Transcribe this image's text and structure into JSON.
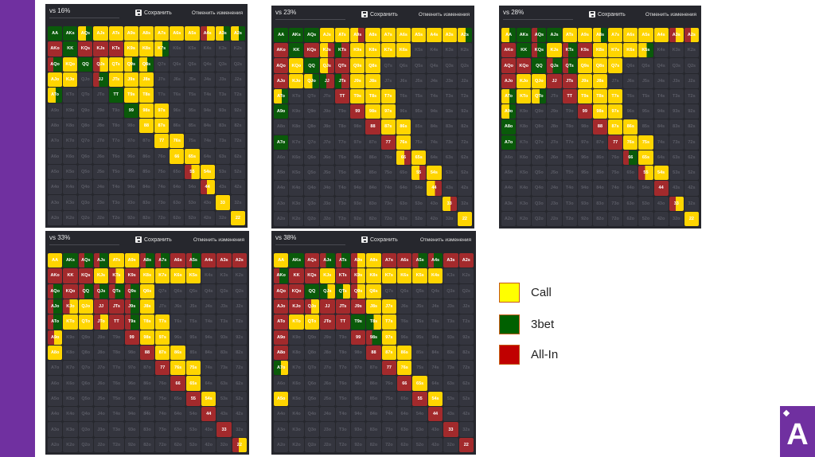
{
  "colors": {
    "call": "#ffd500",
    "threebet": "#0a5a0a",
    "allin": "#a32a2c",
    "empty": "#34353e",
    "accent": "#7030a0"
  },
  "panel_ui": {
    "save_label": "Сохранить",
    "undo_label": "Отменить изменения"
  },
  "hand_labels": [
    "AA AKs AQs AJs ATs A9s A8s A7s A6s A5s A4s A3s A2s",
    "AKo KK KQs KJs KTs K9s K8s K7s K6s K5s K4s K3s K2s",
    "AQo KQo QQ QJs QTs Q9s Q8s Q7s Q6s Q5s Q4s Q3s Q2s",
    "AJo KJo QJo JJ JTs J9s J8s J7s J6s J5s J4s J3s J2s",
    "ATo KTo QTo JTo TT T9s T8s T7s T6s T5s T4s T3s T2s",
    "A9o K9o Q9o J9o T9o 99 98s 97s 96s 95s 94s 93s 92s",
    "A8o K8o Q8o J8o T8o 98o 88 87s 86s 85s 84s 83s 82s",
    "A7o K7o Q7o J7o T7o 97o 87o 77 76s 75s 74s 73s 72s",
    "A6o K6o Q6o J6o T6o 96o 86o 76o 66 65s 64s 63s 62s",
    "A5o K5o Q5o J5o T5o 95o 85o 75o 65o 55 54s 53s 52s",
    "A4o K4o Q4o J4o T4o 94o 84o 74o 64o 54o 44 43s 42s",
    "A3o K3o Q3o J3o T3o 93o 83o 73o 63o 53o 43o 33 32s",
    "A2o K2o Q2o J2o T2o 92o 82o 72o 62o 52o 42o 32o 22"
  ],
  "cell_code_legend": {
    "y": "call",
    "g": "3bet",
    "r": "all-in",
    "Y": "call+3bet",
    "G": "3bet+call",
    "R": "all-in+call",
    "Z": "call+all-in",
    "X": "all-in+3bet",
    "W": "3bet+all-in",
    ".": "fold"
  },
  "panels": [
    {
      "title": "vs 16%",
      "cells": [
        "ggYyyyyyyyRYY",
        "rgrrryyY.....",
        "XygRyYY......",
        "yy.Xyyy......",
        "Y...gyy......",
        ".....gyy.....",
        "......yy.....",
        ".......yy....",
        "........yy...",
        ".........Ry..",
        "..........R..",
        "...........y.",
        "............y"
      ]
    },
    {
      "title": "vs 23%",
      "cells": [
        "gggyyZyyyyyyY",
        "rgrZWyyyy....",
        "rygZryy......",
        "ryYWWyy......",
        "Y...ryyy.....",
        "g....ryy.....",
        "......ryy....",
        "g......ry....",
        "........Zy...",
        ".........Zy..",
        "..........Z..",
        "...........Z.",
        "............y"
      ]
    },
    {
      "title": "vs 28%",
      "cells": [
        "YgXgyyYyyyyRR",
        "rgXyXryyyY...",
        "rrgXXyyy.....",
        "ryyrryy......",
        "YyY.ryyy.....",
        "Y....ryy.....",
        "g.....ryy....",
        "g......ryy...",
        "........Xy...",
        ".........Ry..",
        "..........r..",
        "...........R.",
        "............y"
      ]
    },
    {
      "title": "vs 33%",
      "cells": [
        "ygXXyyXXrXrrr",
        "rrryRryyyy...",
        "XrXXXXy......",
        "XRyrrXy......",
        "XyyRrXyy.....",
        "R....ryy.....",
        "y.....ryy....",
        ".......ryy...",
        "........ry...",
        ".........ry..",
        "..........r..",
        "...........r.",
        "............R"
      ]
    },
    {
      "title": "vs 38%",
      "cells": [
        "ygrXXRyrrXXrr",
        "XrryrRyyyyy..",
        "rrgGGRy......",
        "rrRrrryy.....",
        "ryyrrgGy.....",
        "r....rXy.....",
        "r.....ryy....",
        "G......ry....",
        "........ry...",
        "y........ry..",
        "..........r..",
        "...........r.",
        "............r"
      ]
    }
  ],
  "legend": [
    {
      "label": "Call",
      "color": "#ffff00"
    },
    {
      "label": "3bet",
      "color": "#006000"
    },
    {
      "label": "All-In",
      "color": "#c00000"
    }
  ],
  "logo": {
    "letter": "A"
  }
}
